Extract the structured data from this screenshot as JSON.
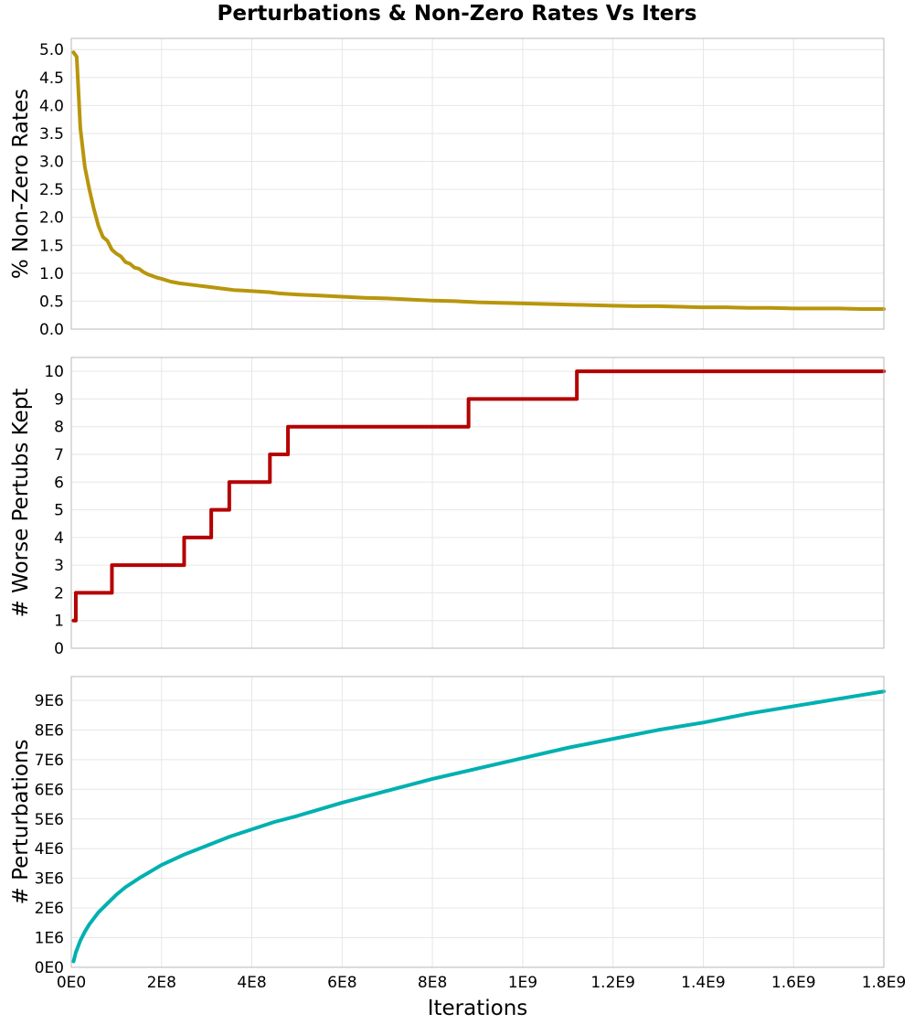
{
  "chart_data": {
    "type": "line",
    "title": "Perturbations & Non-Zero Rates Vs Iters",
    "xlabel": "Iterations",
    "x_ticks": [
      {
        "value": 0,
        "label": "0E0"
      },
      {
        "value": 200000000,
        "label": "2E8"
      },
      {
        "value": 400000000,
        "label": "4E8"
      },
      {
        "value": 600000000,
        "label": "6E8"
      },
      {
        "value": 800000000,
        "label": "8E8"
      },
      {
        "value": 1000000000,
        "label": "1E9"
      },
      {
        "value": 1200000000,
        "label": "1.2E9"
      },
      {
        "value": 1400000000,
        "label": "1.4E9"
      },
      {
        "value": 1600000000,
        "label": "1.6E9"
      },
      {
        "value": 1800000000,
        "label": "1.8E9"
      }
    ],
    "xlim": [
      0,
      1800000000
    ],
    "grid": true,
    "panels": [
      {
        "ylabel": "% Non-Zero Rates",
        "ylim": [
          0,
          5.2
        ],
        "y_ticks": [
          {
            "value": 0.0,
            "label": "0.0"
          },
          {
            "value": 0.5,
            "label": "0.5"
          },
          {
            "value": 1.0,
            "label": "1.0"
          },
          {
            "value": 1.5,
            "label": "1.5"
          },
          {
            "value": 2.0,
            "label": "2.0"
          },
          {
            "value": 2.5,
            "label": "2.5"
          },
          {
            "value": 3.0,
            "label": "3.0"
          },
          {
            "value": 3.5,
            "label": "3.5"
          },
          {
            "value": 4.0,
            "label": "4.0"
          },
          {
            "value": 4.5,
            "label": "4.5"
          },
          {
            "value": 5.0,
            "label": "5.0"
          }
        ],
        "color": "#b8960c",
        "step": false,
        "x": [
          5000000,
          12000000,
          20000000,
          30000000,
          40000000,
          50000000,
          60000000,
          70000000,
          80000000,
          90000000,
          100000000,
          110000000,
          120000000,
          130000000,
          140000000,
          150000000,
          160000000,
          170000000,
          180000000,
          190000000,
          200000000,
          220000000,
          240000000,
          260000000,
          280000000,
          300000000,
          320000000,
          340000000,
          360000000,
          380000000,
          400000000,
          420000000,
          440000000,
          460000000,
          480000000,
          500000000,
          550000000,
          600000000,
          650000000,
          700000000,
          750000000,
          800000000,
          850000000,
          900000000,
          950000000,
          1000000000,
          1050000000,
          1100000000,
          1150000000,
          1200000000,
          1250000000,
          1300000000,
          1350000000,
          1400000000,
          1450000000,
          1500000000,
          1550000000,
          1600000000,
          1650000000,
          1700000000,
          1750000000,
          1800000000
        ],
        "y": [
          4.95,
          4.87,
          3.6,
          2.9,
          2.5,
          2.15,
          1.85,
          1.65,
          1.58,
          1.42,
          1.35,
          1.3,
          1.2,
          1.17,
          1.1,
          1.08,
          1.02,
          0.98,
          0.95,
          0.92,
          0.9,
          0.85,
          0.82,
          0.8,
          0.78,
          0.76,
          0.74,
          0.72,
          0.7,
          0.69,
          0.68,
          0.67,
          0.66,
          0.64,
          0.63,
          0.62,
          0.6,
          0.58,
          0.56,
          0.55,
          0.53,
          0.51,
          0.5,
          0.48,
          0.47,
          0.46,
          0.45,
          0.44,
          0.43,
          0.42,
          0.41,
          0.41,
          0.4,
          0.39,
          0.39,
          0.38,
          0.38,
          0.37,
          0.37,
          0.37,
          0.36,
          0.36
        ]
      },
      {
        "ylabel": "# Worse Pertubs Kept",
        "ylim": [
          0,
          10.5
        ],
        "y_ticks": [
          {
            "value": 0,
            "label": "0"
          },
          {
            "value": 1,
            "label": "1"
          },
          {
            "value": 2,
            "label": "2"
          },
          {
            "value": 3,
            "label": "3"
          },
          {
            "value": 4,
            "label": "4"
          },
          {
            "value": 5,
            "label": "5"
          },
          {
            "value": 6,
            "label": "6"
          },
          {
            "value": 7,
            "label": "7"
          },
          {
            "value": 8,
            "label": "8"
          },
          {
            "value": 9,
            "label": "9"
          },
          {
            "value": 10,
            "label": "10"
          }
        ],
        "color": "#b50000",
        "step": true,
        "x": [
          5000000,
          10000000,
          90000000,
          250000000,
          310000000,
          350000000,
          440000000,
          480000000,
          880000000,
          1120000000,
          1800000000
        ],
        "y": [
          1,
          2,
          3,
          4,
          5,
          6,
          7,
          8,
          9,
          10,
          10
        ]
      },
      {
        "ylabel": "# Perturbations",
        "ylim": [
          0,
          9800000
        ],
        "y_ticks": [
          {
            "value": 0,
            "label": "0E0"
          },
          {
            "value": 1000000,
            "label": "1E6"
          },
          {
            "value": 2000000,
            "label": "2E6"
          },
          {
            "value": 3000000,
            "label": "3E6"
          },
          {
            "value": 4000000,
            "label": "4E6"
          },
          {
            "value": 5000000,
            "label": "5E6"
          },
          {
            "value": 6000000,
            "label": "6E6"
          },
          {
            "value": 7000000,
            "label": "7E6"
          },
          {
            "value": 8000000,
            "label": "8E6"
          },
          {
            "value": 9000000,
            "label": "9E6"
          }
        ],
        "color": "#00b0b0",
        "step": false,
        "x": [
          5000000,
          10000000,
          20000000,
          30000000,
          40000000,
          50000000,
          60000000,
          80000000,
          100000000,
          120000000,
          150000000,
          200000000,
          250000000,
          300000000,
          350000000,
          400000000,
          450000000,
          500000000,
          600000000,
          700000000,
          800000000,
          900000000,
          1000000000,
          1100000000,
          1200000000,
          1300000000,
          1400000000,
          1500000000,
          1600000000,
          1700000000,
          1800000000
        ],
        "y": [
          200000,
          500000,
          900000,
          1200000,
          1450000,
          1650000,
          1850000,
          2150000,
          2450000,
          2700000,
          3000000,
          3450000,
          3800000,
          4100000,
          4400000,
          4650000,
          4900000,
          5100000,
          5550000,
          5950000,
          6350000,
          6700000,
          7050000,
          7400000,
          7700000,
          8000000,
          8250000,
          8550000,
          8800000,
          9050000,
          9300000
        ]
      }
    ]
  }
}
